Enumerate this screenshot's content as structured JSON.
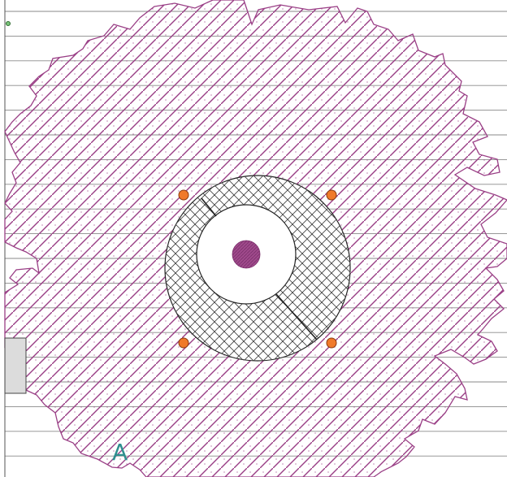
{
  "diagram": {
    "label": "A",
    "colors": {
      "hatch": "#9a3f86",
      "hatch_fill": "#a04a8c",
      "rules": "#8a8a8a",
      "outline": "#222222",
      "bolt": "#f07a2a",
      "bolt_stroke": "#8a3a10",
      "marker": "#2e8b2e",
      "panel": "#dcdcdc",
      "label": "#2f8f8f"
    },
    "bolt_count": 4
  }
}
